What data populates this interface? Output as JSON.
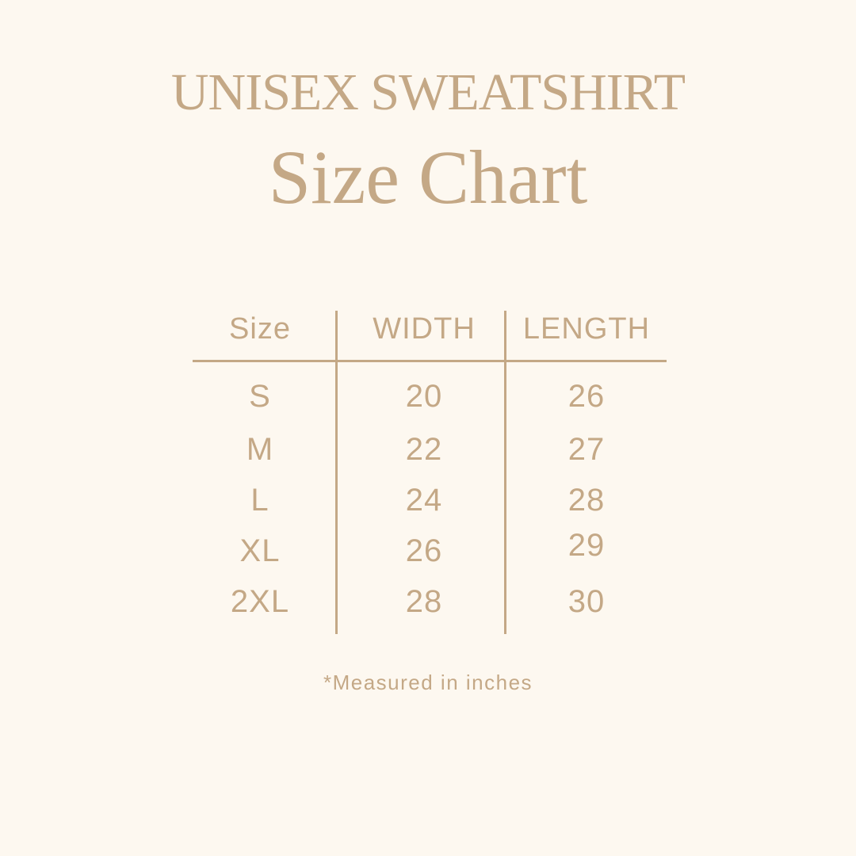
{
  "title": "UNISEX SWEATSHIRT",
  "subtitle": "Size Chart",
  "table": {
    "headers": [
      "Size",
      "WIDTH",
      "LENGTH"
    ],
    "rows": [
      [
        "S",
        "20",
        "26"
      ],
      [
        "M",
        "22",
        "27"
      ],
      [
        "L",
        "24",
        "28"
      ],
      [
        "XL",
        "26",
        "29"
      ],
      [
        "2XL",
        "28",
        "30"
      ]
    ]
  },
  "footnote": "*Measured in inches",
  "colors": {
    "background": "#fdf8f0",
    "text": "#c4a886"
  }
}
